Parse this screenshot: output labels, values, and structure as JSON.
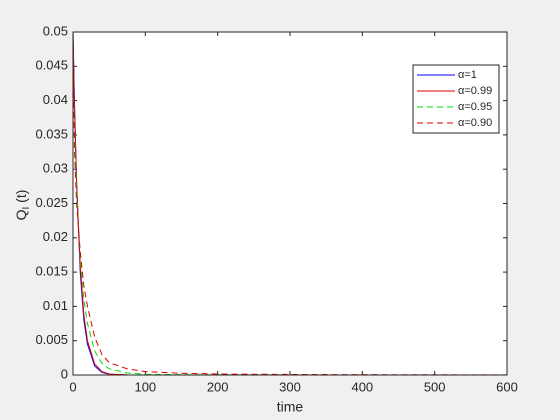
{
  "chart_data": {
    "type": "line",
    "xlabel": "time",
    "ylabel": [
      "Q",
      "I",
      " (t)"
    ],
    "x": [
      0,
      2,
      5,
      10,
      15,
      20,
      30,
      40,
      50,
      75,
      100,
      150,
      200,
      300,
      400,
      500,
      600
    ],
    "series": [
      {
        "name": "α=1",
        "color": "#0000ff",
        "dash": false,
        "values": [
          0.05,
          0.04,
          0.028,
          0.015,
          0.008,
          0.0045,
          0.0013,
          0.0004,
          0.0001,
          0,
          0,
          0,
          0,
          0,
          0,
          0,
          0
        ]
      },
      {
        "name": "α=0.99",
        "color": "#e00000",
        "dash": false,
        "values": [
          0.05,
          0.039,
          0.028,
          0.016,
          0.0088,
          0.005,
          0.0016,
          0.0005,
          0.00015,
          2e-05,
          0,
          0,
          0,
          0,
          0,
          0,
          0
        ]
      },
      {
        "name": "α=0.95",
        "color": "#00dd00",
        "dash": true,
        "values": [
          0.05,
          0.036,
          0.027,
          0.017,
          0.011,
          0.0075,
          0.0035,
          0.0017,
          0.0009,
          0.0003,
          0.0001,
          5e-05,
          3e-05,
          1e-05,
          0,
          0,
          0
        ]
      },
      {
        "name": "α=0.90",
        "color": "#e00000",
        "dash": true,
        "values": [
          0.05,
          0.033,
          0.025,
          0.018,
          0.013,
          0.01,
          0.0055,
          0.003,
          0.0018,
          0.0009,
          0.0005,
          0.00025,
          0.00015,
          8e-05,
          5e-05,
          3e-05,
          2e-05
        ]
      }
    ],
    "xlim": [
      0,
      600
    ],
    "xticks": [
      0,
      100,
      200,
      300,
      400,
      500,
      600
    ],
    "ylim": [
      0,
      0.05
    ],
    "yticks": [
      0,
      0.005,
      0.01,
      0.015,
      0.02,
      0.025,
      0.03,
      0.035,
      0.04,
      0.045,
      0.05
    ],
    "grid": false,
    "legend": "top-right"
  }
}
